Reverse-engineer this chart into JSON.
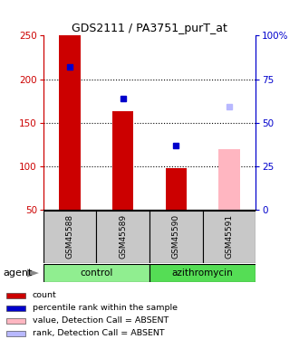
{
  "title": "GDS2111 / PA3751_purT_at",
  "samples": [
    "GSM45588",
    "GSM45589",
    "GSM45590",
    "GSM45591"
  ],
  "group_info": [
    {
      "label": "control",
      "color": "#90EE90",
      "start": 0,
      "end": 2
    },
    {
      "label": "azithromycin",
      "color": "#55DD55",
      "start": 2,
      "end": 4
    }
  ],
  "bar_heights_present": [
    250,
    163,
    98,
    null
  ],
  "bar_heights_absent": [
    null,
    null,
    null,
    120
  ],
  "dot_blue_present": [
    214,
    178,
    124,
    null
  ],
  "dot_blue_absent": [
    null,
    null,
    null,
    168
  ],
  "ylim_left": [
    50,
    250
  ],
  "ylim_right": [
    0,
    100
  ],
  "y_ticks_left": [
    50,
    100,
    150,
    200,
    250
  ],
  "y_ticks_right": [
    0,
    25,
    50,
    75,
    100
  ],
  "y_tick_right_labels": [
    "0",
    "25",
    "50",
    "75",
    "100%"
  ],
  "dotted_lines": [
    100,
    150,
    200
  ],
  "color_left": "#cc0000",
  "color_right": "#0000cc",
  "bar_width": 0.4,
  "legend_items": [
    {
      "color": "#cc0000",
      "label": "count"
    },
    {
      "color": "#0000cc",
      "label": "percentile rank within the sample"
    },
    {
      "color": "#FFB6C1",
      "label": "value, Detection Call = ABSENT"
    },
    {
      "color": "#b8b8ff",
      "label": "rank, Detection Call = ABSENT"
    }
  ],
  "agent_label": "agent",
  "sample_cell_bg": "#c8c8c8"
}
